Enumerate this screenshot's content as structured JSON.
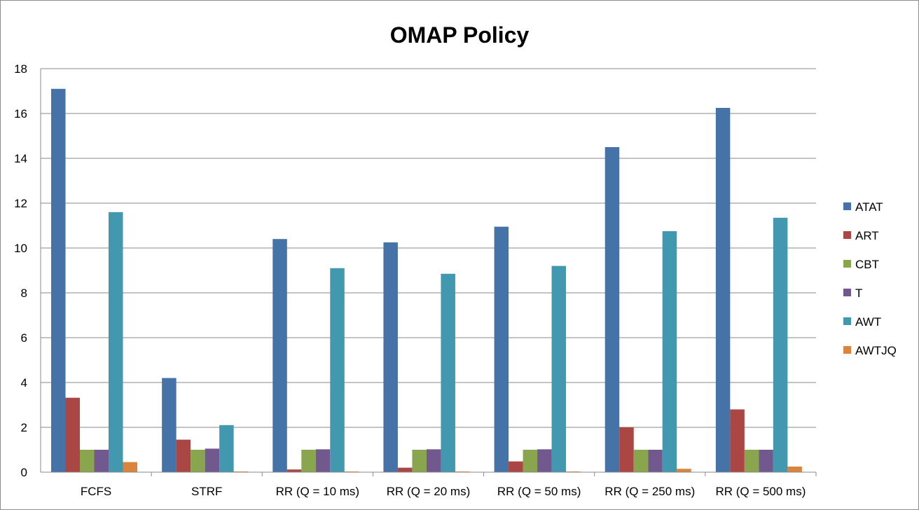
{
  "chart_data": {
    "type": "bar",
    "title": "OMAP Policy",
    "xlabel": "",
    "ylabel": "",
    "ylim": [
      0,
      18
    ],
    "yticks": [
      0,
      2,
      4,
      6,
      8,
      10,
      12,
      14,
      16,
      18
    ],
    "grid": true,
    "legend_position": "right",
    "categories": [
      "FCFS",
      "STRF",
      "RR (Q = 10 ms)",
      "RR (Q = 20 ms)",
      "RR (Q = 50 ms)",
      "RR (Q = 250 ms)",
      "RR (Q = 500 ms)"
    ],
    "series": [
      {
        "name": "ATAT",
        "color": "#4572a7",
        "values": [
          17.1,
          4.2,
          10.4,
          10.25,
          10.95,
          14.5,
          16.25
        ]
      },
      {
        "name": "ART",
        "color": "#aa4643",
        "values": [
          3.32,
          1.45,
          0.12,
          0.2,
          0.48,
          2.0,
          2.8
        ]
      },
      {
        "name": "CBT",
        "color": "#89a54e",
        "values": [
          1.0,
          1.0,
          1.0,
          1.0,
          1.0,
          1.0,
          1.0
        ]
      },
      {
        "name": "T",
        "color": "#71588f",
        "values": [
          1.0,
          1.05,
          1.02,
          1.02,
          1.02,
          1.0,
          1.0
        ]
      },
      {
        "name": "AWT",
        "color": "#4198af",
        "values": [
          11.6,
          2.1,
          9.1,
          8.85,
          9.2,
          10.75,
          11.35
        ]
      },
      {
        "name": "AWTJQ",
        "color": "#db843d",
        "values": [
          0.45,
          0.03,
          0.03,
          0.03,
          0.03,
          0.15,
          0.25
        ]
      }
    ]
  }
}
